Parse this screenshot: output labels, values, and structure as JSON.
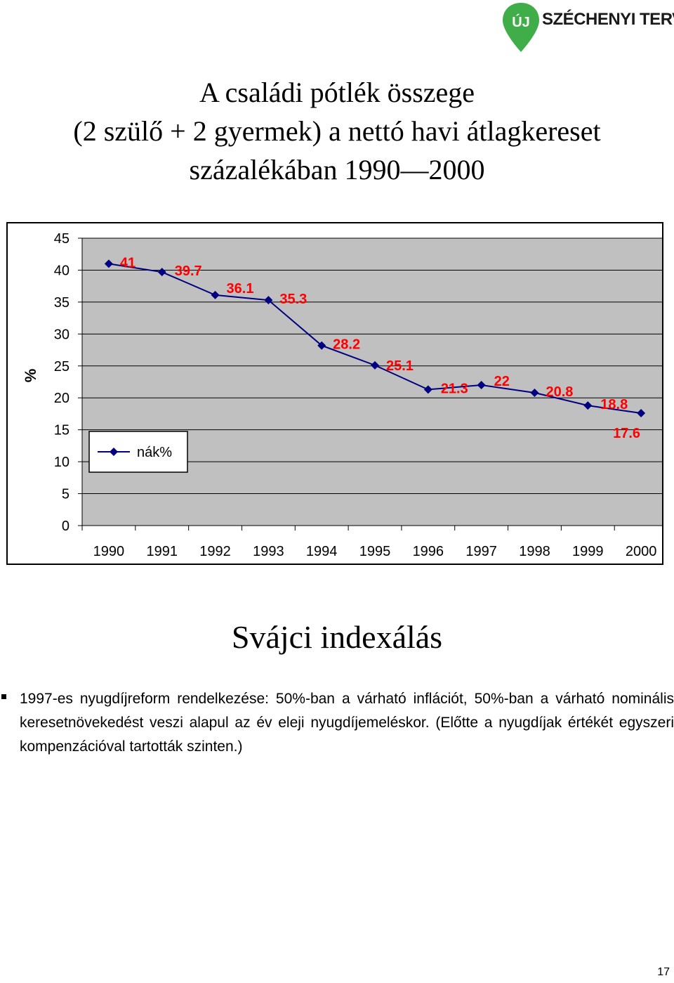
{
  "logo": {
    "text": "SZÉCHENYI TERV",
    "badge": "ÚJ",
    "color": "#3fae49"
  },
  "title_lines": [
    "A családi pótlék összege",
    "(2 szülő + 2 gyermek) a nettó havi átlagkereset",
    "százalékában 1990—2000"
  ],
  "chart_data": {
    "type": "line",
    "title": "",
    "xlabel": "",
    "ylabel": "%",
    "categories": [
      "1990",
      "1991",
      "1992",
      "1993",
      "1994",
      "1995",
      "1996",
      "1997",
      "1998",
      "1999",
      "2000"
    ],
    "series": [
      {
        "name": "nák%",
        "values": [
          41,
          39.7,
          36.1,
          35.3,
          28.2,
          25.1,
          21.3,
          22,
          20.8,
          18.8,
          17.6
        ],
        "color": "#000080"
      }
    ],
    "data_labels": [
      "41",
      "39.7",
      "36.1",
      "35.3",
      "28.2",
      "25.1",
      "21.3",
      "22",
      "20.8",
      "18.8",
      "17.6"
    ],
    "ylim": [
      0,
      45
    ],
    "yticks": [
      "0",
      "5",
      "10",
      "15",
      "20",
      "25",
      "30",
      "35",
      "40",
      "45"
    ],
    "grid": true,
    "legend_position": "bottom-left",
    "plot_bg": "#c0c0c0",
    "label_color": "#ff0000"
  },
  "section_title": "Svájci indexálás",
  "bullet_text": "1997-es nyugdíjreform rendelkezése: 50%-ban a várható inflációt, 50%-ban a várható nominális keresetnövekedést veszi alapul az év eleji nyugdíjemeléskor. (Előtte a nyugdíjak értékét egyszeri kompenzációval tartották szinten.)",
  "page_number": "17"
}
